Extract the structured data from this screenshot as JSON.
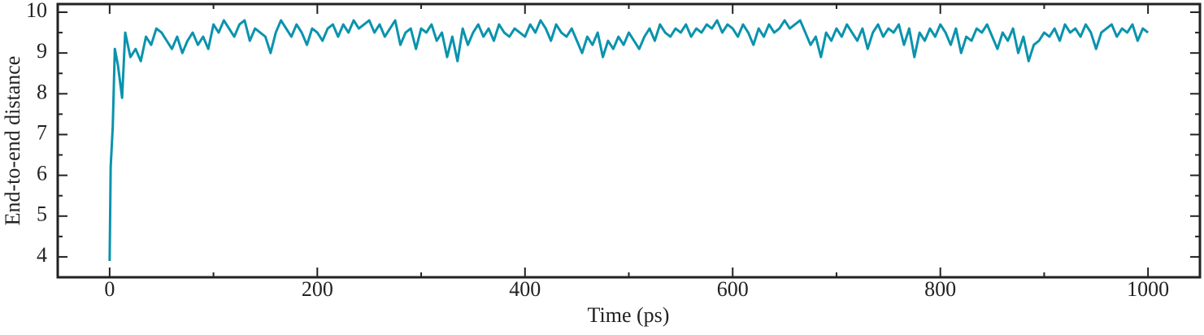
{
  "chart_data": {
    "type": "line",
    "x_label": "Time (ps)",
    "y_label": "End-to-end distance",
    "xlim": [
      -50,
      1050
    ],
    "ylim": [
      3.5,
      10.2
    ],
    "xticks": [
      0,
      200,
      400,
      600,
      800,
      1000
    ],
    "yticks": [
      4,
      5,
      6,
      7,
      8,
      9,
      10
    ],
    "x": [
      0,
      1,
      3,
      5,
      8,
      12,
      15,
      20,
      25,
      30,
      35,
      40,
      45,
      50,
      55,
      60,
      65,
      70,
      75,
      80,
      85,
      90,
      95,
      100,
      105,
      110,
      115,
      120,
      125,
      130,
      135,
      140,
      145,
      150,
      155,
      160,
      165,
      170,
      175,
      180,
      185,
      190,
      195,
      200,
      205,
      210,
      215,
      220,
      225,
      230,
      235,
      240,
      245,
      250,
      255,
      260,
      265,
      270,
      275,
      280,
      285,
      290,
      295,
      300,
      305,
      310,
      315,
      320,
      325,
      330,
      335,
      340,
      345,
      350,
      355,
      360,
      365,
      370,
      375,
      380,
      385,
      390,
      395,
      400,
      405,
      410,
      415,
      420,
      425,
      430,
      435,
      440,
      445,
      450,
      455,
      460,
      465,
      470,
      475,
      480,
      485,
      490,
      495,
      500,
      505,
      510,
      515,
      520,
      525,
      530,
      535,
      540,
      545,
      550,
      555,
      560,
      565,
      570,
      575,
      580,
      585,
      590,
      595,
      600,
      605,
      610,
      615,
      620,
      625,
      630,
      635,
      640,
      645,
      650,
      655,
      660,
      665,
      670,
      675,
      680,
      685,
      690,
      695,
      700,
      705,
      710,
      715,
      720,
      725,
      730,
      735,
      740,
      745,
      750,
      755,
      760,
      765,
      770,
      775,
      780,
      785,
      790,
      795,
      800,
      805,
      810,
      815,
      820,
      825,
      830,
      835,
      840,
      845,
      850,
      855,
      860,
      865,
      870,
      875,
      880,
      885,
      890,
      895,
      900,
      905,
      910,
      915,
      920,
      925,
      930,
      935,
      940,
      945,
      950,
      955,
      960,
      965,
      970,
      975,
      980,
      985,
      990,
      995,
      1000
    ],
    "series": [
      {
        "color": "#0a93ad",
        "values": [
          3.9,
          6.2,
          7.2,
          9.1,
          8.7,
          7.9,
          9.5,
          8.9,
          9.1,
          8.8,
          9.4,
          9.2,
          9.6,
          9.5,
          9.3,
          9.1,
          9.4,
          9.0,
          9.3,
          9.5,
          9.2,
          9.4,
          9.1,
          9.7,
          9.5,
          9.8,
          9.6,
          9.4,
          9.7,
          9.8,
          9.3,
          9.6,
          9.5,
          9.4,
          9.0,
          9.5,
          9.8,
          9.6,
          9.4,
          9.7,
          9.5,
          9.2,
          9.6,
          9.5,
          9.3,
          9.6,
          9.7,
          9.4,
          9.7,
          9.5,
          9.8,
          9.6,
          9.7,
          9.8,
          9.5,
          9.7,
          9.4,
          9.6,
          9.8,
          9.2,
          9.5,
          9.6,
          9.1,
          9.6,
          9.5,
          9.7,
          9.3,
          9.5,
          8.9,
          9.4,
          8.8,
          9.6,
          9.2,
          9.5,
          9.7,
          9.4,
          9.6,
          9.3,
          9.7,
          9.5,
          9.4,
          9.6,
          9.5,
          9.4,
          9.7,
          9.5,
          9.8,
          9.6,
          9.3,
          9.7,
          9.5,
          9.4,
          9.6,
          9.3,
          9.0,
          9.4,
          9.2,
          9.5,
          8.9,
          9.3,
          9.1,
          9.4,
          9.2,
          9.5,
          9.3,
          9.1,
          9.4,
          9.6,
          9.3,
          9.7,
          9.5,
          9.4,
          9.6,
          9.5,
          9.7,
          9.4,
          9.6,
          9.5,
          9.7,
          9.6,
          9.8,
          9.5,
          9.7,
          9.6,
          9.4,
          9.7,
          9.5,
          9.2,
          9.6,
          9.4,
          9.7,
          9.5,
          9.6,
          9.8,
          9.6,
          9.7,
          9.8,
          9.5,
          9.2,
          9.4,
          8.9,
          9.5,
          9.3,
          9.6,
          9.4,
          9.7,
          9.5,
          9.3,
          9.6,
          9.1,
          9.5,
          9.7,
          9.4,
          9.6,
          9.5,
          9.7,
          9.2,
          9.6,
          8.9,
          9.5,
          9.3,
          9.6,
          9.4,
          9.7,
          9.5,
          9.2,
          9.6,
          9.0,
          9.4,
          9.3,
          9.6,
          9.5,
          9.7,
          9.4,
          9.1,
          9.5,
          9.3,
          9.6,
          9.0,
          9.4,
          8.8,
          9.2,
          9.3,
          9.5,
          9.4,
          9.6,
          9.3,
          9.7,
          9.5,
          9.6,
          9.4,
          9.7,
          9.5,
          9.1,
          9.5,
          9.6,
          9.7,
          9.4,
          9.6,
          9.5,
          9.7,
          9.3,
          9.6,
          9.5
        ]
      }
    ]
  }
}
